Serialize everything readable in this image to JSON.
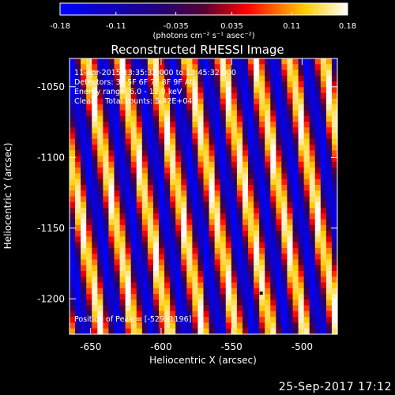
{
  "chart_data": {
    "type": "heatmap",
    "title": "Reconstructed RHESSI Image",
    "xlabel": "Heliocentric X (arcsec)",
    "ylabel": "Heliocentric Y (arcsec)",
    "xlim": [
      -665,
      -475
    ],
    "ylim": [
      -1225,
      -1030
    ],
    "x_ticks": [
      -650,
      -600,
      -550,
      -500
    ],
    "y_ticks": [
      -1050,
      -1100,
      -1150,
      -1200
    ],
    "colorbar": {
      "range": [
        -0.18,
        0.18
      ],
      "ticks": [
        "-0.18",
        "-0.11",
        "-0.035",
        "0.035",
        "0.11",
        "0.18"
      ],
      "unit_label": "(photons cm⁻² s⁻¹ asec⁻²)",
      "colormap": [
        "#000000",
        "#0000ff",
        "#ff0000",
        "#ffff00",
        "#ffffff"
      ]
    },
    "annotations": [
      "11-Apr-2015 13:35:32.000 to 13:45:32.000",
      "Detectors: 3F 5F 6F 7F 8F 9F Att",
      "Energy range: 6.0 - 12.0 keV",
      "Clean    Total counts: 5.42E+04"
    ],
    "peak_label": "Position of Peak = [-529,-1196]",
    "peak_position": [
      -529,
      -1196
    ],
    "pattern": {
      "period_arcsec": 24,
      "slant_x_per_y": 0.18,
      "grid_cells": [
        48,
        48
      ],
      "value_range": [
        -0.18,
        0.18
      ]
    }
  },
  "timestamp": "25-Sep-2017 17:12"
}
